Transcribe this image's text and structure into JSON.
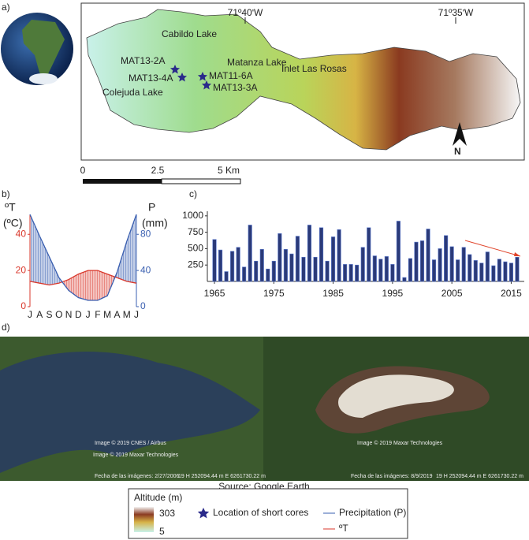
{
  "panel_labels": [
    "a)",
    "b)",
    "c)",
    "d)"
  ],
  "map": {
    "longitudes": [
      "71º40ʹW",
      "71º35ʹW"
    ],
    "places": [
      "Cabildo Lake",
      "Matanza Lake",
      "Inlet Las Rosas",
      "Colejuda Lake"
    ],
    "cores": [
      "MAT13-2A",
      "MAT13-4A",
      "MAT11-6A",
      "MAT13-3A"
    ],
    "north": "N",
    "scale": [
      "0",
      "2.5",
      "5 Km"
    ]
  },
  "chart_data": [
    {
      "type": "line",
      "categories": [
        "J",
        "A",
        "S",
        "O",
        "N",
        "D",
        "J",
        "F",
        "M",
        "A",
        "M",
        "J"
      ],
      "y_label": [
        "ºT",
        "(ºC)"
      ],
      "y2_label": [
        "P",
        "(mm)"
      ],
      "ylim": [
        0,
        51
      ],
      "yticks": [
        0,
        20,
        40
      ],
      "y2lim": [
        0,
        102
      ],
      "y2ticks": [
        0,
        40,
        80
      ],
      "series": [
        {
          "name": "ºT",
          "color": "#d9372b",
          "values": [
            14,
            13,
            12,
            13,
            15,
            18,
            20,
            20,
            18,
            16,
            14,
            13
          ]
        },
        {
          "name": "Precipitation (P)",
          "color": "#3a5fb0",
          "axis": "y2",
          "values": [
            102,
            78,
            55,
            32,
            18,
            10,
            7,
            7,
            12,
            38,
            72,
            102
          ]
        }
      ]
    },
    {
      "type": "bar",
      "x": [
        1965,
        1966,
        1967,
        1968,
        1969,
        1970,
        1971,
        1972,
        1973,
        1974,
        1975,
        1976,
        1977,
        1978,
        1979,
        1980,
        1981,
        1982,
        1983,
        1984,
        1985,
        1986,
        1987,
        1988,
        1989,
        1990,
        1991,
        1992,
        1993,
        1994,
        1995,
        1996,
        1997,
        1998,
        1999,
        2000,
        2001,
        2002,
        2003,
        2004,
        2005,
        2006,
        2007,
        2008,
        2009,
        2010,
        2011,
        2012,
        2013,
        2014,
        2015,
        2016
      ],
      "values": [
        640,
        480,
        150,
        460,
        520,
        220,
        860,
        310,
        490,
        190,
        310,
        730,
        490,
        420,
        690,
        370,
        860,
        370,
        820,
        310,
        680,
        790,
        260,
        260,
        250,
        520,
        820,
        390,
        340,
        380,
        260,
        920,
        60,
        350,
        600,
        620,
        800,
        330,
        500,
        700,
        530,
        330,
        520,
        410,
        320,
        280,
        450,
        240,
        340,
        300,
        280,
        370
      ],
      "color": "#2b3a78",
      "xlim": [
        1963.8,
        2017.2
      ],
      "xticks": [
        1965,
        1975,
        1985,
        1995,
        2005,
        2015
      ],
      "ylim": [
        0,
        1070
      ],
      "yticks": [
        250,
        500,
        750,
        1000
      ]
    }
  ],
  "photos": {
    "left": [
      "Image © 2019 CNES / Airbus",
      "Image © 2019 Maxar Technologies",
      "Fecha de las imágenes: 2/27/2006",
      "19 H 252094.44 m E 6261730.22 m"
    ],
    "right": [
      "Image © 2019 Maxar Technologies",
      "Fecha de las imágenes: 8/9/2019",
      "19 H 252094.44 m E 6261730.22 m"
    ],
    "source": "Source: Google Earth"
  },
  "legend": {
    "altitude_title": "Altitude (m)",
    "altitude_max": 303,
    "altitude_min": 5,
    "cores": "Location of short cores",
    "precipitation": "Precipitation (P)",
    "temperature": "ºT"
  }
}
